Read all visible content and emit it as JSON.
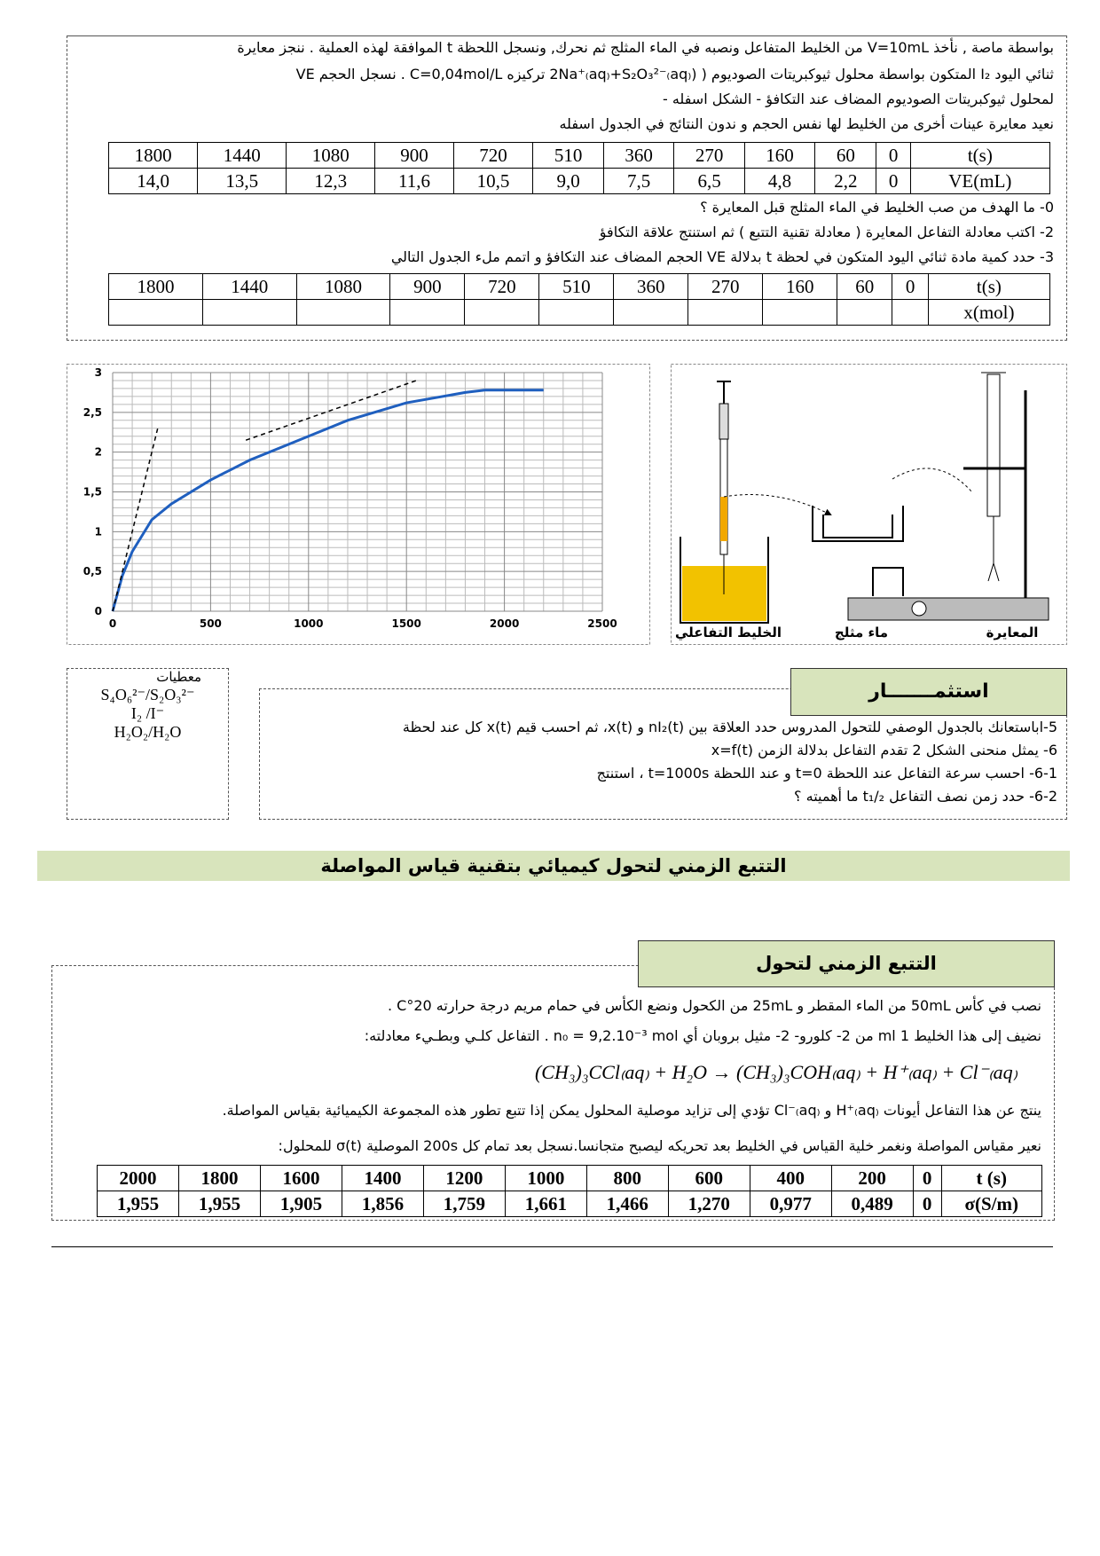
{
  "part1": {
    "lines": [
      "بواسطة ماصة , نأخذ V=10mL من الخليط المتفاعل ونصبه في الماء المثلج ثم نحرك, ونسجل اللحظة t الموافقة لهذه العملية . ننجز معايرة",
      "ثنائي اليود I₂ المتكون بواسطة محلول ثيوكبريتات الصوديوم ( (2Na⁺₍aq₎+S₂O₃²⁻₍aq₎ تركيزه C=0,04mol/L . نسجل الحجم VE",
      "لمحلول ثيوكبريتات الصوديوم المضاف عند التكافؤ - الشكل اسفله -",
      "نعيد معايرة عينات أخرى من الخليط لها نفس الحجم و ندون النتائج في الجدول اسفله"
    ],
    "table1": {
      "rows": [
        [
          "t(s)",
          "0",
          "60",
          "160",
          "270",
          "360",
          "510",
          "720",
          "900",
          "1080",
          "1440",
          "1800"
        ],
        [
          "VE(mL)",
          "0",
          "2,2",
          "4,8",
          "6,5",
          "7,5",
          "9,0",
          "10,5",
          "11,6",
          "12,3",
          "13,5",
          "14,0"
        ]
      ]
    },
    "questions": [
      "0- ما الهدف من صب الخليط في الماء المثلج قبل المعايرة ؟",
      "2- اكتب معادلة التفاعل المعايرة ( معادلة تقنية التتبع ) ثم استنتج علاقة التكافؤ",
      "3- حدد كمية مادة ثنائي اليود المتكون في لحظة t بدلالة VE الحجم المضاف عند التكافؤ و اتمم ملء الجدول التالي"
    ],
    "table2": {
      "header": [
        "t(s)",
        "0",
        "60",
        "160",
        "270",
        "360",
        "510",
        "720",
        "900",
        "1080",
        "1440",
        "1800"
      ],
      "row_label": "x(mol)"
    }
  },
  "graph": {
    "x": [
      0,
      50,
      100,
      200,
      300,
      500,
      700,
      1000,
      1200,
      1500,
      1800,
      1900,
      2200
    ],
    "y": [
      0,
      0.45,
      0.75,
      1.15,
      1.35,
      1.65,
      1.9,
      2.2,
      2.4,
      2.62,
      2.75,
      2.78,
      2.78
    ],
    "color": "#1f5fbf",
    "xlim": [
      0,
      2500
    ],
    "ylim": [
      0,
      3
    ],
    "xticks": [
      0,
      500,
      1000,
      1500,
      2000,
      2500
    ],
    "yticks": [
      0,
      {
        "value": 0.5,
        "label": "0,5"
      },
      1,
      {
        "value": 1.5,
        "label": "1,5"
      },
      2,
      {
        "value": 2.5,
        "label": "2,5"
      },
      3
    ],
    "tangents": [
      {
        "x": [
          0,
          230
        ],
        "y": [
          0,
          2.3
        ]
      },
      {
        "x": [
          680,
          1550
        ],
        "y": [
          2.15,
          2.9
        ]
      }
    ]
  },
  "diagram": {
    "labels": [
      "الخليط التفاعلي",
      "ماء مثلج",
      "المعايرة"
    ]
  },
  "given": {
    "title": "معطيات",
    "items": [
      "S₄O₆²⁻/S₂O₃²⁻",
      "I₂ /I⁻",
      "H₂O₂/H₂O"
    ]
  },
  "exploit": {
    "title": "استثمـــــــار",
    "lines": [
      "5-اباستعانك بالجدول الوصفي للتحول المدروس حدد العلاقة بين nI₂(t) و x(t)، ثم احسب قيم x(t) كل عند لحظة",
      "6- يمثل منحنى الشكل 2 تقدم التفاعل بدلالة الزمن x=f(t)",
      "6-1- احسب سرعة التفاعل عند اللحظة t=0 و عند اللحظة t=1000s ، استنتج",
      "6-2- حدد زمن نصف التفاعل t₁/₂ ما أهميته ؟"
    ]
  },
  "section2": {
    "banner": "التتبع الزمني لتحول كيميائي بتقنية قياس المواصلة",
    "title": "التتبع الزمني لتحول",
    "lines": [
      "نصب في كأس 50mL من الماء المقطر و 25mL من الكحول ونضع الكأس في حمام مريم درجة حرارته 20°C .",
      "نضيف إلى هذا الخليط 1 ml من 2- كلورو- 2- مثيل بروبان أي n₀ = 9,2.10⁻³ mol . التفاعل كلـي وبطـيء معادلته:"
    ],
    "equation": "(CH₃)₃CCl₍aq₎ + H₂O → (CH₃)₃COH₍aq₎ + H⁺₍aq₎ + Cl⁻₍aq₎",
    "lines2": [
      "ينتج عن هذا التفاعل أيونات H⁺₍aq₎ و Cl⁻₍aq₎ تؤدي إلى تزايد موصلية المحلول يمكن إذا تتبع تطور هذه المجموعة الكيميائية بقياس المواصلة.",
      "نعير مقياس المواصلة ونغمر خلية القياس في الخليط بعد تحريكه ليصبح متجانسا.نسجل بعد تمام كل 200s الموصلية σ(t) للمحلول:"
    ],
    "table3": {
      "rows": [
        [
          "t (s)",
          "0",
          "200",
          "400",
          "600",
          "800",
          "1000",
          "1200",
          "1400",
          "1600",
          "1800",
          "2000"
        ],
        [
          "σ(S/m)",
          "0",
          "0,489",
          "0,977",
          "1,270",
          "1,466",
          "1,661",
          "1,759",
          "1,856",
          "1,905",
          "1,955",
          "1,955"
        ]
      ]
    }
  }
}
